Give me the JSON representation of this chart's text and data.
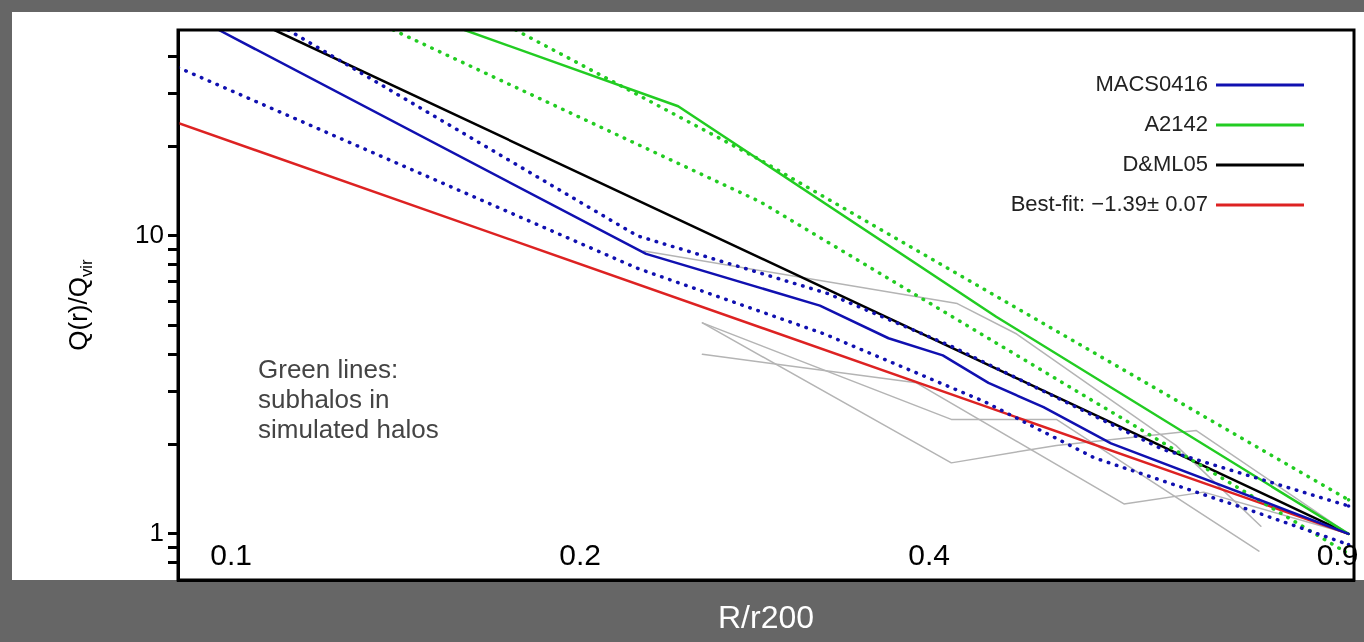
{
  "chart_data": {
    "type": "line",
    "xlabel": "R/r200",
    "ylabel": "Q(r)/Q$_{vir}$",
    "log": "xy",
    "xlim": [
      0.09,
      0.93
    ],
    "xticks": [
      0.1,
      0.2,
      0.4,
      0.9
    ],
    "ylim": [
      0.7,
      49
    ],
    "yticks": [
      {
        "value": 0.8,
        "label": null
      },
      {
        "value": 0.9,
        "label": null
      },
      1,
      {
        "value": 2,
        "label": null
      },
      {
        "value": 3,
        "label": null
      },
      {
        "value": 4,
        "label": null
      },
      {
        "value": 5,
        "label": null
      },
      {
        "value": 6,
        "label": null
      },
      {
        "value": 7,
        "label": null
      },
      {
        "value": 8,
        "label": null
      },
      {
        "value": 9,
        "label": null
      },
      10,
      {
        "value": 20,
        "label": null
      },
      {
        "value": 30,
        "label": null
      },
      {
        "value": 40,
        "label": null
      }
    ],
    "grid": false,
    "legend": "top right",
    "marker": "none",
    "annotations": [
      "Green lines:\nsubhalos in\nsimulated halos"
    ],
    "series": [
      {
        "name": "MACS0416",
        "color": "#1010b0",
        "x": [
          0.0976,
          0.228,
          0.322,
          0.369,
          0.411,
          0.45,
          0.502,
          0.574,
          0.92
        ],
        "values": [
          49,
          8.69,
          5.83,
          4.53,
          3.97,
          3.21,
          2.66,
          2.01,
          1
        ]
      },
      {
        "color": "#1010b0",
        "line_style": "dotted",
        "x": [
          0.112,
          0.224,
          0.327,
          0.418,
          0.636,
          0.92
        ],
        "values": [
          49,
          10,
          6.4,
          4.26,
          1.92,
          1.24
        ]
      },
      {
        "color": "#1010b0",
        "line_style": "dotted",
        "x": [
          0.09,
          0.224,
          0.325,
          0.447,
          0.555,
          0.752,
          0.92
        ],
        "values": [
          36.7,
          7.78,
          4.68,
          2.77,
          1.8,
          1.21,
          0.92
        ]
      },
      {
        "name": "A2142",
        "color": "#22cc22",
        "x": [
          0.159,
          0.243,
          0.457,
          0.92
        ],
        "values": [
          49,
          27.2,
          5.35,
          1
        ]
      },
      {
        "color": "#22cc22",
        "line_style": "dotted",
        "x": [
          0.176,
          0.285,
          0.92
        ],
        "values": [
          49,
          18.1,
          1.3
        ]
      },
      {
        "color": "#22cc22",
        "line_style": "dotted",
        "x": [
          0.138,
          0.286,
          0.914
        ],
        "values": [
          49,
          13,
          0.87
        ]
      },
      {
        "name": "D&ML05",
        "color": "#000000",
        "x": [
          0.109,
          0.92
        ],
        "values": [
          49,
          1
        ]
      },
      {
        "name": "Best-fit: −1.39± 0.07",
        "color": "#dd2222",
        "x": [
          0.09,
          0.92
        ],
        "values": [
          23.9,
          1
        ]
      },
      {
        "color": "#b4b4b4",
        "x": [
          0.227,
          0.423,
          0.476,
          0.653,
          0.773
        ],
        "values": [
          8.89,
          5.92,
          4.68,
          1.98,
          1.06
        ]
      },
      {
        "color": "#b4b4b4",
        "x": [
          0.255,
          0.418,
          0.515,
          0.68,
          0.92
        ],
        "values": [
          5.1,
          1.73,
          1.98,
          2.22,
          1
        ]
      },
      {
        "color": "#b4b4b4",
        "x": [
          0.255,
          0.39,
          0.589,
          0.69,
          0.92
        ],
        "values": [
          4.0,
          3.21,
          1.26,
          1.38,
          1
        ]
      },
      {
        "color": "#b4b4b4",
        "x": [
          0.255,
          0.418,
          0.515,
          0.77
        ],
        "values": [
          5.1,
          2.42,
          2.42,
          0.875
        ]
      }
    ]
  }
}
